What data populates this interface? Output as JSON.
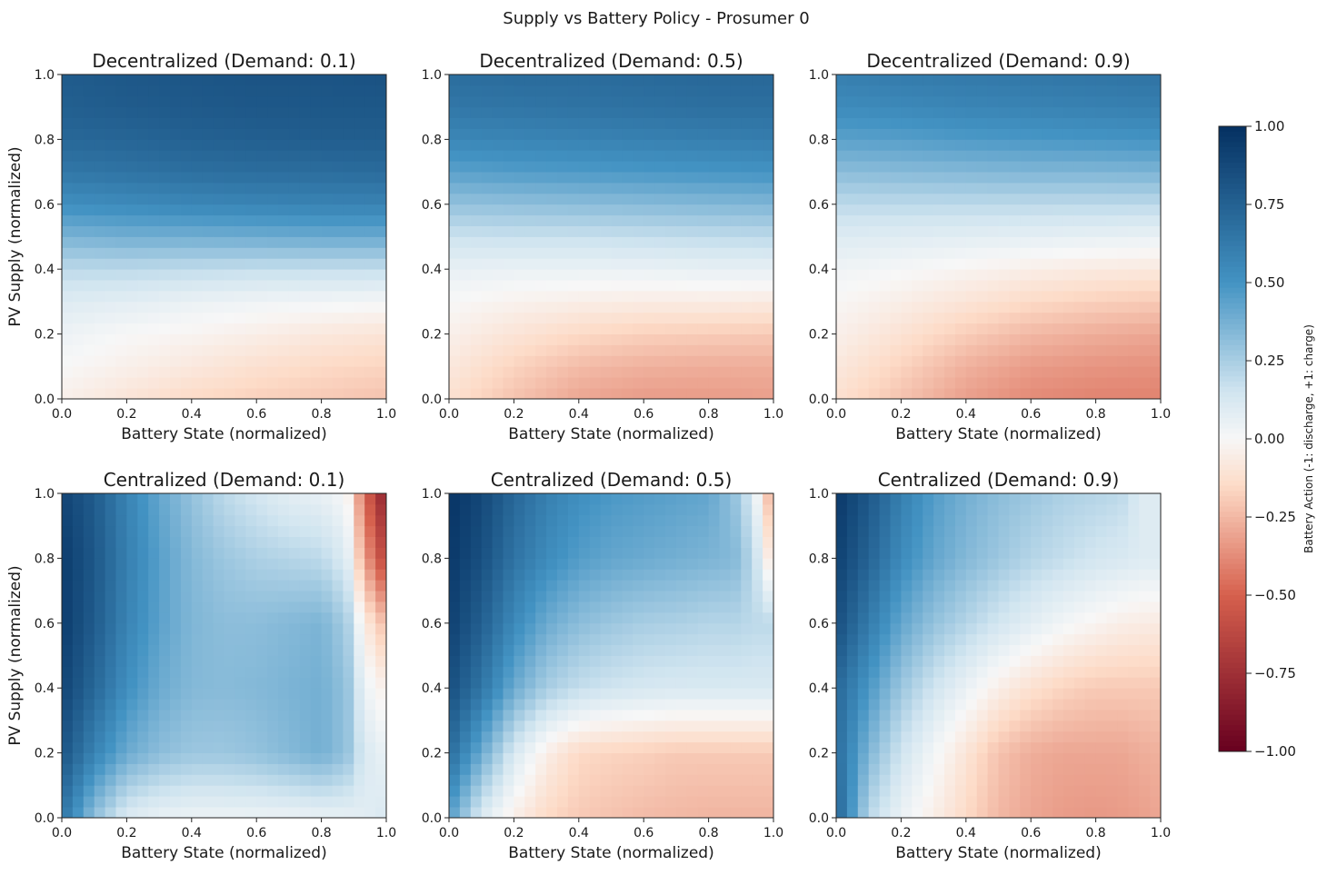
{
  "figure": {
    "suptitle": "Supply vs Battery Policy - Prosumer 0"
  },
  "colorbar": {
    "label": "Battery Action (-1: discharge, +1: charge)",
    "ticks": [
      "1.00",
      "0.75",
      "0.50",
      "0.25",
      "0.00",
      "−0.25",
      "−0.50",
      "−0.75",
      "−1.00"
    ],
    "range": [
      -1,
      1
    ],
    "colormap": "RdBu",
    "colors": {
      "neg_strong": "#67001f",
      "neg_mid": "#d6604d",
      "neg_light": "#fddbc7",
      "zero": "#f7f7f7",
      "pos_light": "#d1e5f0",
      "pos_mid": "#4393c3",
      "pos_strong": "#053061"
    }
  },
  "chart_data": [
    {
      "type": "heatmap",
      "title": "Decentralized (Demand: 0.1)",
      "xlabel": "Battery State (normalized)",
      "ylabel": "PV Supply (normalized)",
      "xlim": [
        0,
        1
      ],
      "ylim": [
        0,
        1
      ],
      "x_ticks": [
        "0.0",
        "0.2",
        "0.4",
        "0.6",
        "0.8",
        "1.0"
      ],
      "y_ticks": [
        "0.0",
        "0.2",
        "0.4",
        "0.6",
        "0.8",
        "1.0"
      ],
      "vmin": -1,
      "vmax": 1,
      "grid": false,
      "x": [
        0.0,
        0.2,
        0.4,
        0.6,
        0.8,
        1.0
      ],
      "y": [
        0.0,
        0.1,
        0.2,
        0.3,
        0.4,
        0.5,
        0.6,
        0.7,
        0.8,
        0.9,
        1.0
      ],
      "z": [
        [
          -0.04,
          -0.1,
          -0.15,
          -0.18,
          -0.2,
          -0.22
        ],
        [
          0.0,
          -0.04,
          -0.08,
          -0.12,
          -0.15,
          -0.17
        ],
        [
          0.04,
          0.0,
          -0.02,
          -0.05,
          -0.08,
          -0.1
        ],
        [
          0.1,
          0.08,
          0.05,
          0.03,
          0.02,
          0.01
        ],
        [
          0.2,
          0.2,
          0.19,
          0.18,
          0.18,
          0.18
        ],
        [
          0.36,
          0.38,
          0.38,
          0.39,
          0.4,
          0.4
        ],
        [
          0.52,
          0.54,
          0.56,
          0.57,
          0.58,
          0.58
        ],
        [
          0.64,
          0.66,
          0.68,
          0.69,
          0.69,
          0.7
        ],
        [
          0.72,
          0.73,
          0.75,
          0.76,
          0.77,
          0.77
        ],
        [
          0.76,
          0.78,
          0.79,
          0.8,
          0.8,
          0.8
        ],
        [
          0.78,
          0.8,
          0.81,
          0.82,
          0.82,
          0.83
        ]
      ]
    },
    {
      "type": "heatmap",
      "title": "Decentralized (Demand: 0.5)",
      "xlabel": "Battery State (normalized)",
      "ylabel": "",
      "xlim": [
        0,
        1
      ],
      "ylim": [
        0,
        1
      ],
      "x_ticks": [
        "0.0",
        "0.2",
        "0.4",
        "0.6",
        "0.8",
        "1.0"
      ],
      "y_ticks": [
        "0.0",
        "0.2",
        "0.4",
        "0.6",
        "0.8",
        "1.0"
      ],
      "vmin": -1,
      "vmax": 1,
      "grid": false,
      "x": [
        0.0,
        0.2,
        0.4,
        0.6,
        0.8,
        1.0
      ],
      "y": [
        0.0,
        0.1,
        0.2,
        0.3,
        0.4,
        0.5,
        0.6,
        0.7,
        0.8,
        0.9,
        1.0
      ],
      "z": [
        [
          -0.12,
          -0.22,
          -0.3,
          -0.33,
          -0.33,
          -0.32
        ],
        [
          -0.08,
          -0.17,
          -0.24,
          -0.27,
          -0.28,
          -0.28
        ],
        [
          -0.04,
          -0.1,
          -0.15,
          -0.18,
          -0.19,
          -0.2
        ],
        [
          0.0,
          -0.03,
          -0.05,
          -0.06,
          -0.06,
          -0.07
        ],
        [
          0.06,
          0.05,
          0.05,
          0.05,
          0.06,
          0.06
        ],
        [
          0.16,
          0.17,
          0.17,
          0.18,
          0.19,
          0.2
        ],
        [
          0.3,
          0.31,
          0.32,
          0.33,
          0.34,
          0.35
        ],
        [
          0.44,
          0.46,
          0.47,
          0.48,
          0.49,
          0.5
        ],
        [
          0.56,
          0.57,
          0.58,
          0.59,
          0.6,
          0.61
        ],
        [
          0.64,
          0.65,
          0.66,
          0.67,
          0.68,
          0.68
        ],
        [
          0.69,
          0.7,
          0.7,
          0.71,
          0.72,
          0.72
        ]
      ]
    },
    {
      "type": "heatmap",
      "title": "Decentralized (Demand: 0.9)",
      "xlabel": "Battery State (normalized)",
      "ylabel": "",
      "xlim": [
        0,
        1
      ],
      "ylim": [
        0,
        1
      ],
      "x_ticks": [
        "0.0",
        "0.2",
        "0.4",
        "0.6",
        "0.8",
        "1.0"
      ],
      "y_ticks": [
        "0.0",
        "0.2",
        "0.4",
        "0.6",
        "0.8",
        "1.0"
      ],
      "vmin": -1,
      "vmax": 1,
      "grid": false,
      "x": [
        0.0,
        0.2,
        0.4,
        0.6,
        0.8,
        1.0
      ],
      "y": [
        0.0,
        0.1,
        0.2,
        0.3,
        0.4,
        0.5,
        0.6,
        0.7,
        0.8,
        0.9,
        1.0
      ],
      "z": [
        [
          -0.12,
          -0.22,
          -0.32,
          -0.38,
          -0.4,
          -0.4
        ],
        [
          -0.08,
          -0.17,
          -0.27,
          -0.33,
          -0.35,
          -0.36
        ],
        [
          -0.04,
          -0.11,
          -0.19,
          -0.25,
          -0.28,
          -0.3
        ],
        [
          -0.01,
          -0.05,
          -0.1,
          -0.15,
          -0.18,
          -0.2
        ],
        [
          0.03,
          0.01,
          -0.02,
          -0.05,
          -0.07,
          -0.08
        ],
        [
          0.1,
          0.09,
          0.08,
          0.07,
          0.06,
          0.05
        ],
        [
          0.2,
          0.2,
          0.2,
          0.2,
          0.2,
          0.2
        ],
        [
          0.32,
          0.33,
          0.34,
          0.35,
          0.35,
          0.36
        ],
        [
          0.44,
          0.45,
          0.47,
          0.48,
          0.49,
          0.5
        ],
        [
          0.54,
          0.55,
          0.57,
          0.58,
          0.59,
          0.6
        ],
        [
          0.6,
          0.62,
          0.63,
          0.64,
          0.65,
          0.66
        ]
      ]
    },
    {
      "type": "heatmap",
      "title": "Centralized (Demand: 0.1)",
      "xlabel": "Battery State (normalized)",
      "ylabel": "PV Supply (normalized)",
      "xlim": [
        0,
        1
      ],
      "ylim": [
        0,
        1
      ],
      "x_ticks": [
        "0.0",
        "0.2",
        "0.4",
        "0.6",
        "0.8",
        "1.0"
      ],
      "y_ticks": [
        "0.0",
        "0.2",
        "0.4",
        "0.6",
        "0.8",
        "1.0"
      ],
      "vmin": -1,
      "vmax": 1,
      "grid": false,
      "x": [
        0.0,
        0.1,
        0.2,
        0.3,
        0.4,
        0.5,
        0.6,
        0.7,
        0.8,
        0.88,
        0.93,
        1.0
      ],
      "y": [
        0.0,
        0.2,
        0.4,
        0.6,
        0.8,
        1.0
      ],
      "z": [
        [
          0.65,
          0.3,
          0.1,
          0.05,
          0.04,
          0.04,
          0.04,
          0.04,
          0.05,
          0.06,
          0.08,
          0.12
        ],
        [
          0.82,
          0.58,
          0.4,
          0.32,
          0.28,
          0.28,
          0.3,
          0.34,
          0.38,
          0.3,
          0.12,
          0.05
        ],
        [
          0.9,
          0.72,
          0.52,
          0.4,
          0.34,
          0.33,
          0.34,
          0.36,
          0.38,
          0.3,
          0.05,
          -0.05
        ],
        [
          0.94,
          0.78,
          0.58,
          0.44,
          0.35,
          0.32,
          0.32,
          0.34,
          0.36,
          0.25,
          -0.05,
          -0.25
        ],
        [
          0.94,
          0.8,
          0.6,
          0.45,
          0.34,
          0.28,
          0.24,
          0.22,
          0.2,
          0.1,
          -0.3,
          -0.65
        ],
        [
          0.9,
          0.78,
          0.58,
          0.42,
          0.3,
          0.2,
          0.14,
          0.08,
          0.06,
          0.0,
          -0.45,
          -0.85
        ]
      ]
    },
    {
      "type": "heatmap",
      "title": "Centralized (Demand: 0.5)",
      "xlabel": "Battery State (normalized)",
      "ylabel": "",
      "xlim": [
        0,
        1
      ],
      "ylim": [
        0,
        1
      ],
      "x_ticks": [
        "0.0",
        "0.2",
        "0.4",
        "0.6",
        "0.8",
        "1.0"
      ],
      "y_ticks": [
        "0.0",
        "0.2",
        "0.4",
        "0.6",
        "0.8",
        "1.0"
      ],
      "vmin": -1,
      "vmax": 1,
      "grid": false,
      "x": [
        0.0,
        0.1,
        0.2,
        0.3,
        0.4,
        0.5,
        0.6,
        0.7,
        0.8,
        0.88,
        0.94,
        1.0
      ],
      "y": [
        0.0,
        0.2,
        0.4,
        0.6,
        0.8,
        1.0
      ],
      "z": [
        [
          0.45,
          0.1,
          -0.05,
          -0.15,
          -0.2,
          -0.22,
          -0.24,
          -0.25,
          -0.26,
          -0.26,
          -0.26,
          -0.26
        ],
        [
          0.7,
          0.4,
          0.12,
          -0.05,
          -0.15,
          -0.17,
          -0.18,
          -0.2,
          -0.2,
          -0.2,
          -0.2,
          -0.2
        ],
        [
          0.85,
          0.65,
          0.4,
          0.25,
          0.18,
          0.15,
          0.13,
          0.12,
          0.12,
          0.12,
          0.12,
          0.12
        ],
        [
          0.92,
          0.76,
          0.55,
          0.4,
          0.32,
          0.28,
          0.25,
          0.24,
          0.22,
          0.22,
          0.2,
          0.2
        ],
        [
          0.96,
          0.84,
          0.66,
          0.54,
          0.46,
          0.42,
          0.4,
          0.38,
          0.36,
          0.34,
          0.2,
          -0.15
        ],
        [
          0.98,
          0.88,
          0.72,
          0.6,
          0.52,
          0.48,
          0.46,
          0.44,
          0.42,
          0.3,
          0.1,
          -0.35
        ]
      ]
    },
    {
      "type": "heatmap",
      "title": "Centralized (Demand: 0.9)",
      "xlabel": "Battery State (normalized)",
      "ylabel": "",
      "xlim": [
        0,
        1
      ],
      "ylim": [
        0,
        1
      ],
      "x_ticks": [
        "0.0",
        "0.2",
        "0.4",
        "0.6",
        "0.8",
        "1.0"
      ],
      "y_ticks": [
        "0.0",
        "0.2",
        "0.4",
        "0.6",
        "0.8",
        "1.0"
      ],
      "vmin": -1,
      "vmax": 1,
      "grid": false,
      "x": [
        0.0,
        0.1,
        0.2,
        0.3,
        0.4,
        0.5,
        0.6,
        0.7,
        0.8,
        0.88,
        0.94,
        1.0
      ],
      "y": [
        0.0,
        0.2,
        0.4,
        0.6,
        0.8,
        1.0
      ],
      "z": [
        [
          0.75,
          0.2,
          0.05,
          -0.05,
          -0.15,
          -0.25,
          -0.3,
          -0.33,
          -0.34,
          -0.33,
          -0.32,
          -0.3
        ],
        [
          0.7,
          0.35,
          0.15,
          0.02,
          -0.1,
          -0.22,
          -0.28,
          -0.3,
          -0.3,
          -0.3,
          -0.28,
          -0.27
        ],
        [
          0.72,
          0.48,
          0.28,
          0.15,
          0.05,
          -0.05,
          -0.12,
          -0.17,
          -0.2,
          -0.2,
          -0.2,
          -0.2
        ],
        [
          0.85,
          0.62,
          0.42,
          0.3,
          0.22,
          0.14,
          0.08,
          0.02,
          -0.02,
          -0.05,
          -0.06,
          -0.07
        ],
        [
          0.92,
          0.74,
          0.54,
          0.42,
          0.34,
          0.28,
          0.22,
          0.18,
          0.14,
          0.12,
          0.1,
          0.1
        ],
        [
          0.96,
          0.8,
          0.6,
          0.46,
          0.38,
          0.32,
          0.28,
          0.24,
          0.22,
          0.2,
          0.1,
          0.1
        ]
      ]
    }
  ]
}
